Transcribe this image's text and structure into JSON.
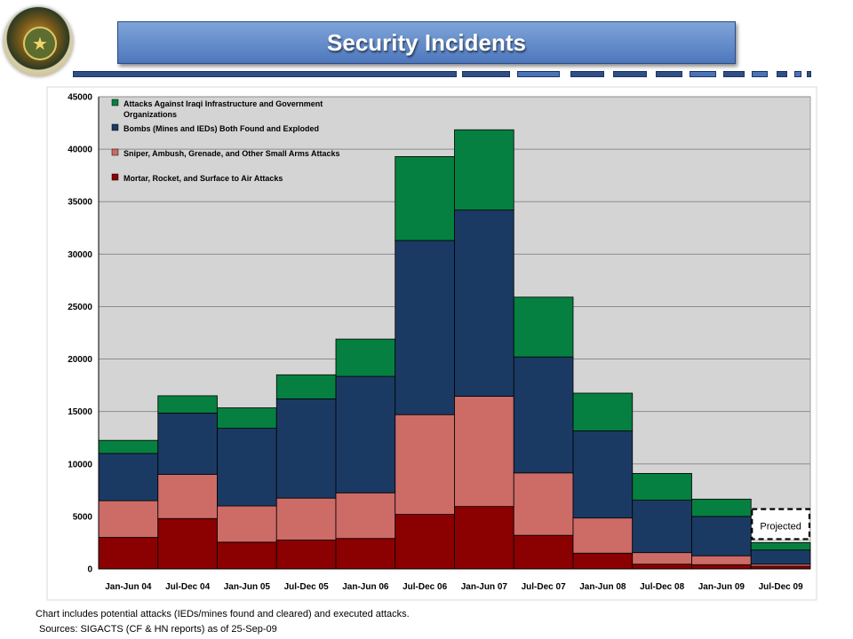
{
  "title": "Security Incidents",
  "footnotes": {
    "line1": "Chart includes potential attacks (IEDs/mines found and cleared) and executed attacks.",
    "line2": "Sources: SIGACTS (CF & HN reports) as of 25-Sep-09"
  },
  "chart_data": {
    "type": "bar",
    "stacked": true,
    "title": "Security Incidents",
    "categories": [
      "Jan-Jun 04",
      "Jul-Dec 04",
      "Jan-Jun 05",
      "Jul-Dec 05",
      "Jan-Jun 06",
      "Jul-Dec 06",
      "Jan-Jun 07",
      "Jul-Dec 07",
      "Jan-Jun 08",
      "Jul-Dec 08",
      "Jan-Jun 09",
      "Jul-Dec 09"
    ],
    "series": [
      {
        "name": "Mortar, Rocket, and Surface to Air Attacks",
        "color": "#8b0000",
        "values": [
          3000,
          4800,
          2550,
          2750,
          2900,
          5200,
          5950,
          3200,
          1500,
          450,
          400,
          250
        ]
      },
      {
        "name": "Sniper, Ambush, Grenade, and Other Small Arms Attacks",
        "color": "#cd6b67",
        "values": [
          3500,
          4200,
          3450,
          4000,
          4350,
          9500,
          10500,
          5950,
          3350,
          1100,
          850,
          200
        ]
      },
      {
        "name": "Bombs (Mines and IEDs) Both Found and Exploded",
        "color": "#1b3a63",
        "values": [
          4500,
          5850,
          7400,
          9450,
          11100,
          16600,
          17750,
          11050,
          8300,
          5000,
          3750,
          1350
        ]
      },
      {
        "name": "Attacks Against Iraqi Infrastructure and Government Organizations",
        "color": "#058040",
        "values": [
          1250,
          1650,
          1950,
          2300,
          3550,
          8000,
          7650,
          5700,
          3600,
          2550,
          1650,
          700
        ]
      }
    ],
    "ylim": [
      0,
      45000
    ],
    "yticks": [
      "0",
      "5000",
      "10000",
      "15000",
      "20000",
      "25000",
      "30000",
      "35000",
      "40000",
      "45000"
    ],
    "legend_order": [
      3,
      2,
      1,
      0
    ],
    "legend_position": "top-left",
    "grid": true,
    "annotation": {
      "label": "Projected",
      "category": "Jul-Dec 09",
      "projected_total": 5700
    }
  }
}
